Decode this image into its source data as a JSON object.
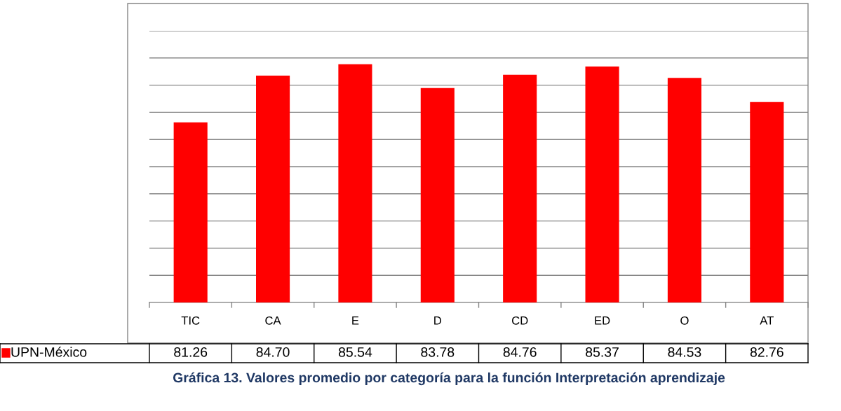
{
  "chart_data": {
    "type": "bar",
    "categories": [
      "TIC",
      "CA",
      "E",
      "D",
      "CD",
      "ED",
      "O",
      "AT"
    ],
    "series": [
      {
        "name": "UPN-México",
        "color": "#ff0000",
        "values": [
          81.26,
          84.7,
          85.54,
          83.78,
          84.76,
          85.37,
          84.53,
          82.76
        ],
        "value_labels": [
          "81.26",
          "84.70",
          "85.54",
          "83.78",
          "84.76",
          "85.37",
          "84.53",
          "82.76"
        ]
      }
    ],
    "ylim": [
      68,
      88
    ],
    "yticks": [
      {
        "value": 68,
        "label": null
      },
      {
        "value": 70,
        "label": null
      },
      {
        "value": 72,
        "label": null
      },
      {
        "value": 74,
        "label": null
      },
      {
        "value": 76,
        "label": null
      },
      {
        "value": 78,
        "label": null
      },
      {
        "value": 80,
        "label": null
      },
      {
        "value": 82,
        "label": null
      },
      {
        "value": 84,
        "label": null
      },
      {
        "value": 86,
        "label": null
      },
      {
        "value": 88,
        "label": null
      }
    ],
    "grid": "y",
    "tick_labels": "x",
    "annotations": [
      "Gráfica 13. Valores promedio por categoría para la función Interpretación aprendizaje"
    ]
  }
}
